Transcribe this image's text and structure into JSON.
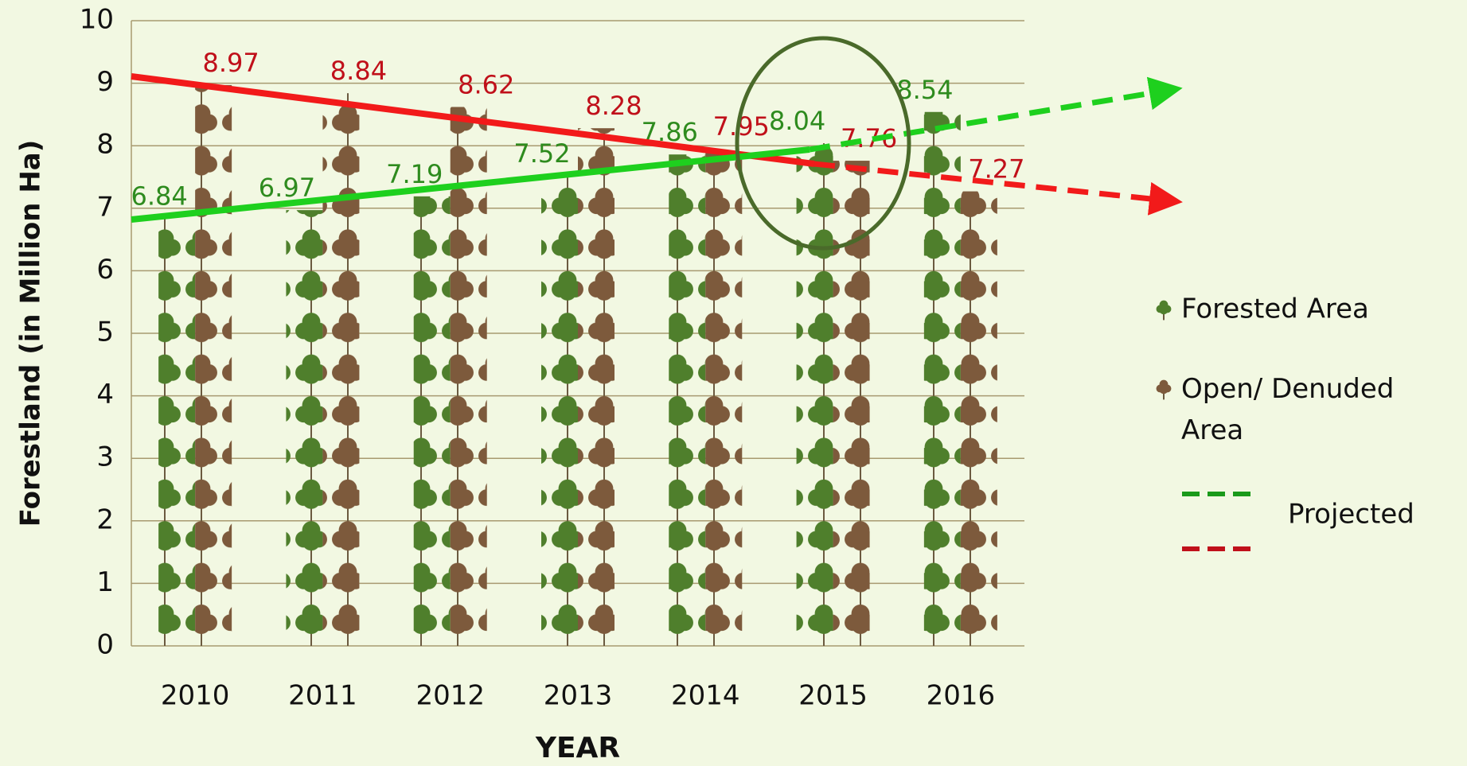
{
  "chart_data": {
    "type": "bar",
    "y_label": "Forestland (in Million Ha)",
    "x_label": "YEAR",
    "categories": [
      "2010",
      "2011",
      "2012",
      "2013",
      "2014",
      "2015",
      "2016"
    ],
    "series": [
      {
        "name": "Forested Area",
        "color": "#4f7f2c",
        "label_color": "#2e8b1e",
        "values": [
          6.84,
          6.97,
          7.19,
          7.52,
          7.86,
          8.04,
          8.54
        ]
      },
      {
        "name": "Open/ Denuded Area",
        "color": "#7d5a3c",
        "label_color": "#c0101a",
        "values": [
          8.97,
          8.84,
          8.62,
          8.28,
          7.95,
          7.76,
          7.27
        ]
      }
    ],
    "projected_label": "Projected",
    "ylim": [
      0,
      10
    ],
    "yticks": [
      0,
      1,
      2,
      3,
      4,
      5,
      6,
      7,
      8,
      9,
      10
    ],
    "grid": true
  }
}
